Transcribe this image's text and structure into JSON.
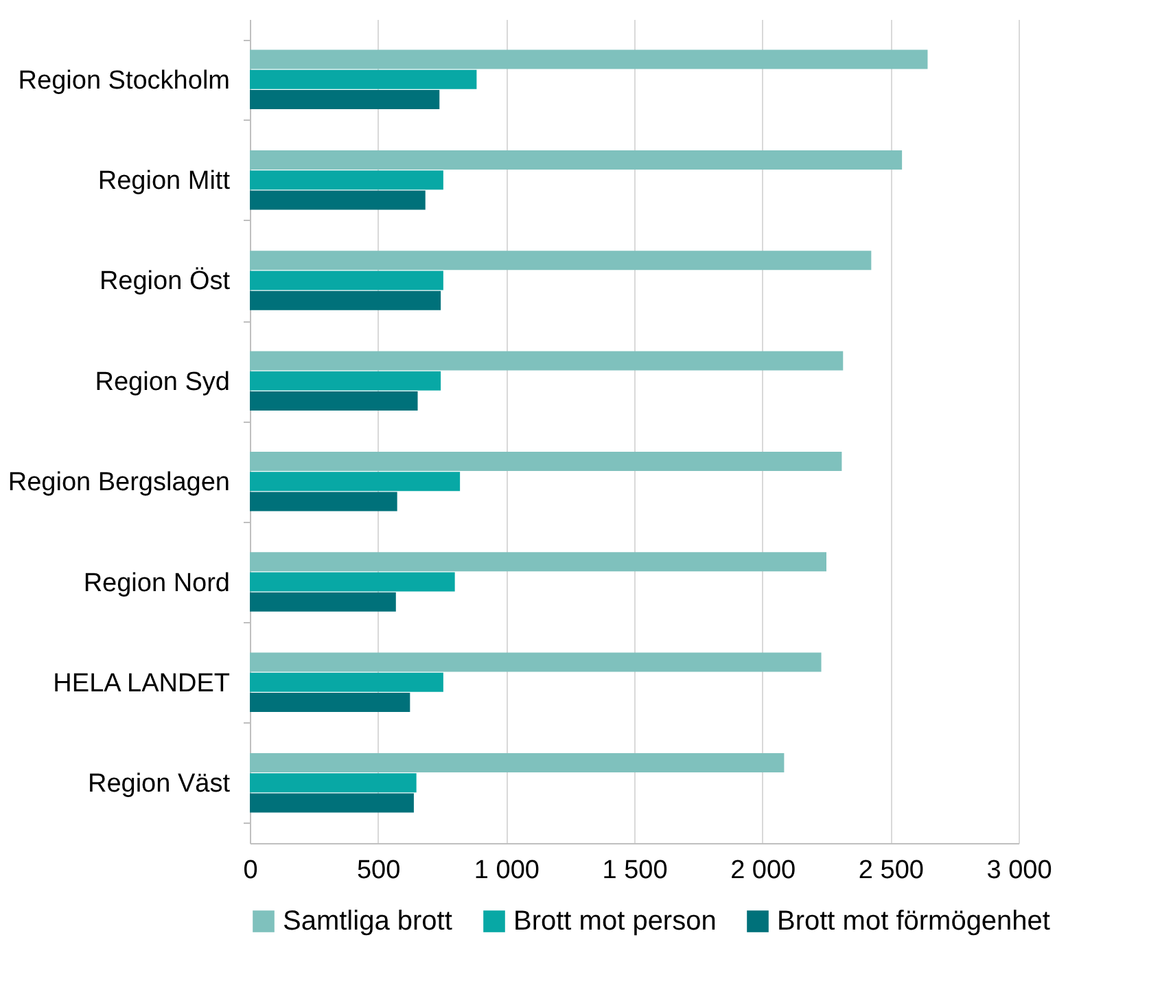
{
  "chart_data": {
    "type": "bar",
    "orientation": "horizontal",
    "categories": [
      "Region Stockholm",
      "Region Mitt",
      "Region Öst",
      "Region Syd",
      "Region Bergslagen",
      "Region Nord",
      "HELA LANDET",
      "Region Väst"
    ],
    "series": [
      {
        "name": "Samtliga brott",
        "color": "#7fc1bd",
        "values": [
          2645,
          2545,
          2425,
          2315,
          2310,
          2250,
          2230,
          2085
        ]
      },
      {
        "name": "Brott mot person",
        "color": "#08a8a5",
        "values": [
          885,
          755,
          755,
          745,
          820,
          800,
          755,
          650
        ]
      },
      {
        "name": "Brott mot förmögenhet",
        "color": "#00717a",
        "values": [
          740,
          685,
          745,
          655,
          575,
          570,
          625,
          640
        ]
      }
    ],
    "xlim": [
      0,
      3000
    ],
    "xticks": [
      0,
      500,
      {
        "value": 1000,
        "label": "1 000"
      },
      {
        "value": 1500,
        "label": "1 500"
      },
      {
        "value": 2000,
        "label": "2 000"
      },
      {
        "value": 2500,
        "label": "2 500"
      },
      {
        "value": 3000,
        "label": "3 000"
      }
    ],
    "grid": "x",
    "legend": "bottom"
  }
}
